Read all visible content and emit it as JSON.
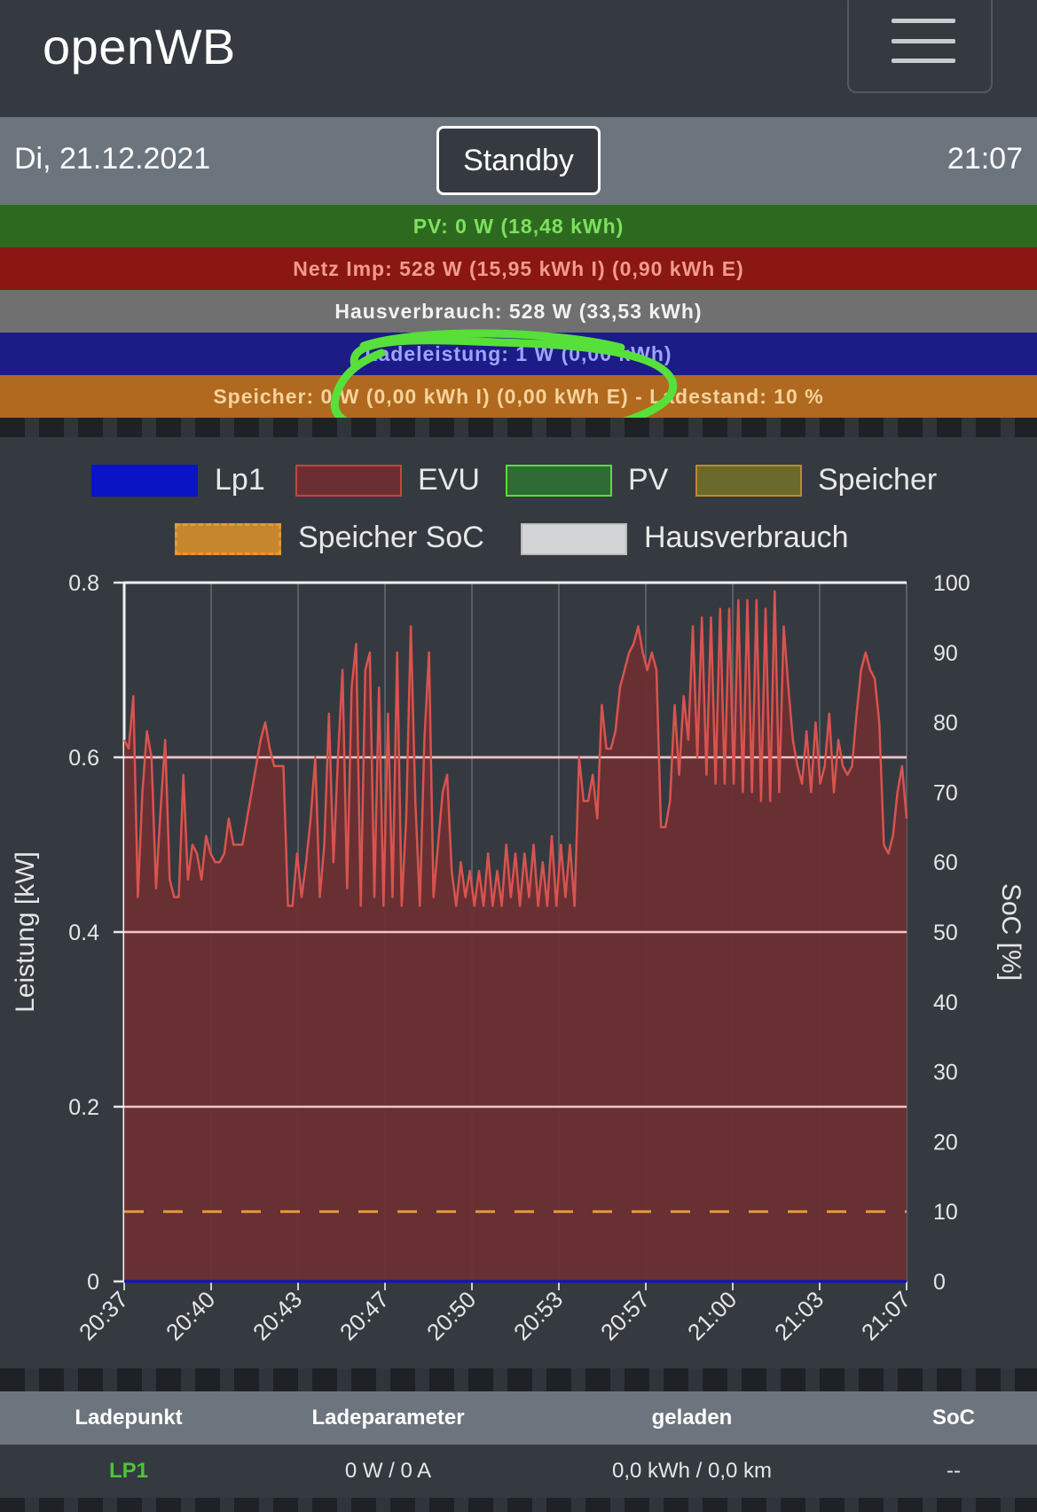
{
  "app": {
    "title": "openWB"
  },
  "status": {
    "date": "Di, 21.12.2021",
    "mode_button": "Standby",
    "time": "21:07"
  },
  "summary": {
    "pv": "PV: 0 W (18,48 kWh)",
    "netz": "Netz Imp: 528 W (15,95 kWh I) (0,90 kWh E)",
    "haus": "Hausverbrauch: 528 W (33,53 kWh)",
    "lade": "Ladeleistung: 1 W (0,00 kWh)",
    "speicher": "Speicher: 0 W (0,00 kWh I) (0,00 kWh E) - Ladestand: 10 %"
  },
  "annotation": {
    "color": "#58e03a"
  },
  "colors": {
    "lp1": "#0b14c4",
    "evu": "#d9534f",
    "evu_fill": "#6b2f33",
    "pv": "#58e03a",
    "speicher": "#c08a2a",
    "soc": "#e69a35",
    "haus": "#d2d4d6"
  },
  "chart_data": {
    "type": "line",
    "legend": [
      "Lp1",
      "EVU",
      "PV",
      "Speicher",
      "Speicher SoC",
      "Hausverbrauch"
    ],
    "ylabel": "Leistung [kW]",
    "y2label": "SoC [%]",
    "ylim": [
      0,
      0.8
    ],
    "y2lim": [
      0,
      100
    ],
    "yticks": [
      "0",
      "0.2",
      "0.4",
      "0.6",
      "0.8"
    ],
    "y2ticks": [
      "0",
      "10",
      "20",
      "30",
      "40",
      "50",
      "60",
      "70",
      "80",
      "90",
      "100"
    ],
    "xticks": [
      "20:37",
      "20:40",
      "20:43",
      "20:47",
      "20:50",
      "20:53",
      "20:57",
      "21:00",
      "21:03",
      "21:07"
    ],
    "series": [
      {
        "name": "EVU",
        "values": [
          0.62,
          0.61,
          0.67,
          0.44,
          0.56,
          0.63,
          0.6,
          0.45,
          0.54,
          0.62,
          0.46,
          0.44,
          0.44,
          0.58,
          0.46,
          0.5,
          0.49,
          0.46,
          0.51,
          0.49,
          0.48,
          0.48,
          0.49,
          0.53,
          0.5,
          0.5,
          0.5,
          0.53,
          0.56,
          0.59,
          0.62,
          0.64,
          0.61,
          0.59,
          0.59,
          0.59,
          0.43,
          0.43,
          0.49,
          0.44,
          0.48,
          0.53,
          0.6,
          0.44,
          0.5,
          0.65,
          0.48,
          0.6,
          0.7,
          0.45,
          0.68,
          0.73,
          0.43,
          0.7,
          0.72,
          0.44,
          0.68,
          0.43,
          0.65,
          0.44,
          0.72,
          0.43,
          0.53,
          0.75,
          0.55,
          0.43,
          0.62,
          0.72,
          0.44,
          0.5,
          0.56,
          0.58,
          0.47,
          0.43,
          0.48,
          0.44,
          0.47,
          0.43,
          0.47,
          0.43,
          0.49,
          0.43,
          0.47,
          0.43,
          0.5,
          0.44,
          0.49,
          0.43,
          0.49,
          0.44,
          0.5,
          0.43,
          0.48,
          0.43,
          0.51,
          0.43,
          0.5,
          0.44,
          0.5,
          0.43,
          0.6,
          0.55,
          0.55,
          0.58,
          0.53,
          0.66,
          0.61,
          0.61,
          0.63,
          0.68,
          0.7,
          0.72,
          0.73,
          0.75,
          0.72,
          0.7,
          0.72,
          0.7,
          0.52,
          0.52,
          0.55,
          0.66,
          0.58,
          0.67,
          0.62,
          0.75,
          0.6,
          0.76,
          0.58,
          0.76,
          0.57,
          0.77,
          0.57,
          0.77,
          0.57,
          0.78,
          0.56,
          0.78,
          0.56,
          0.78,
          0.55,
          0.77,
          0.55,
          0.79,
          0.56,
          0.75,
          0.68,
          0.62,
          0.59,
          0.57,
          0.63,
          0.56,
          0.64,
          0.57,
          0.59,
          0.65,
          0.56,
          0.62,
          0.59,
          0.58,
          0.59,
          0.65,
          0.7,
          0.72,
          0.7,
          0.69,
          0.64,
          0.5,
          0.49,
          0.51,
          0.56,
          0.59,
          0.53
        ]
      },
      {
        "name": "Lp1",
        "values": [
          0,
          0
        ]
      },
      {
        "name": "PV",
        "values": [
          0,
          0
        ]
      },
      {
        "name": "Speicher SoC",
        "values": [
          10,
          10
        ],
        "unit": "%"
      }
    ]
  }
}
